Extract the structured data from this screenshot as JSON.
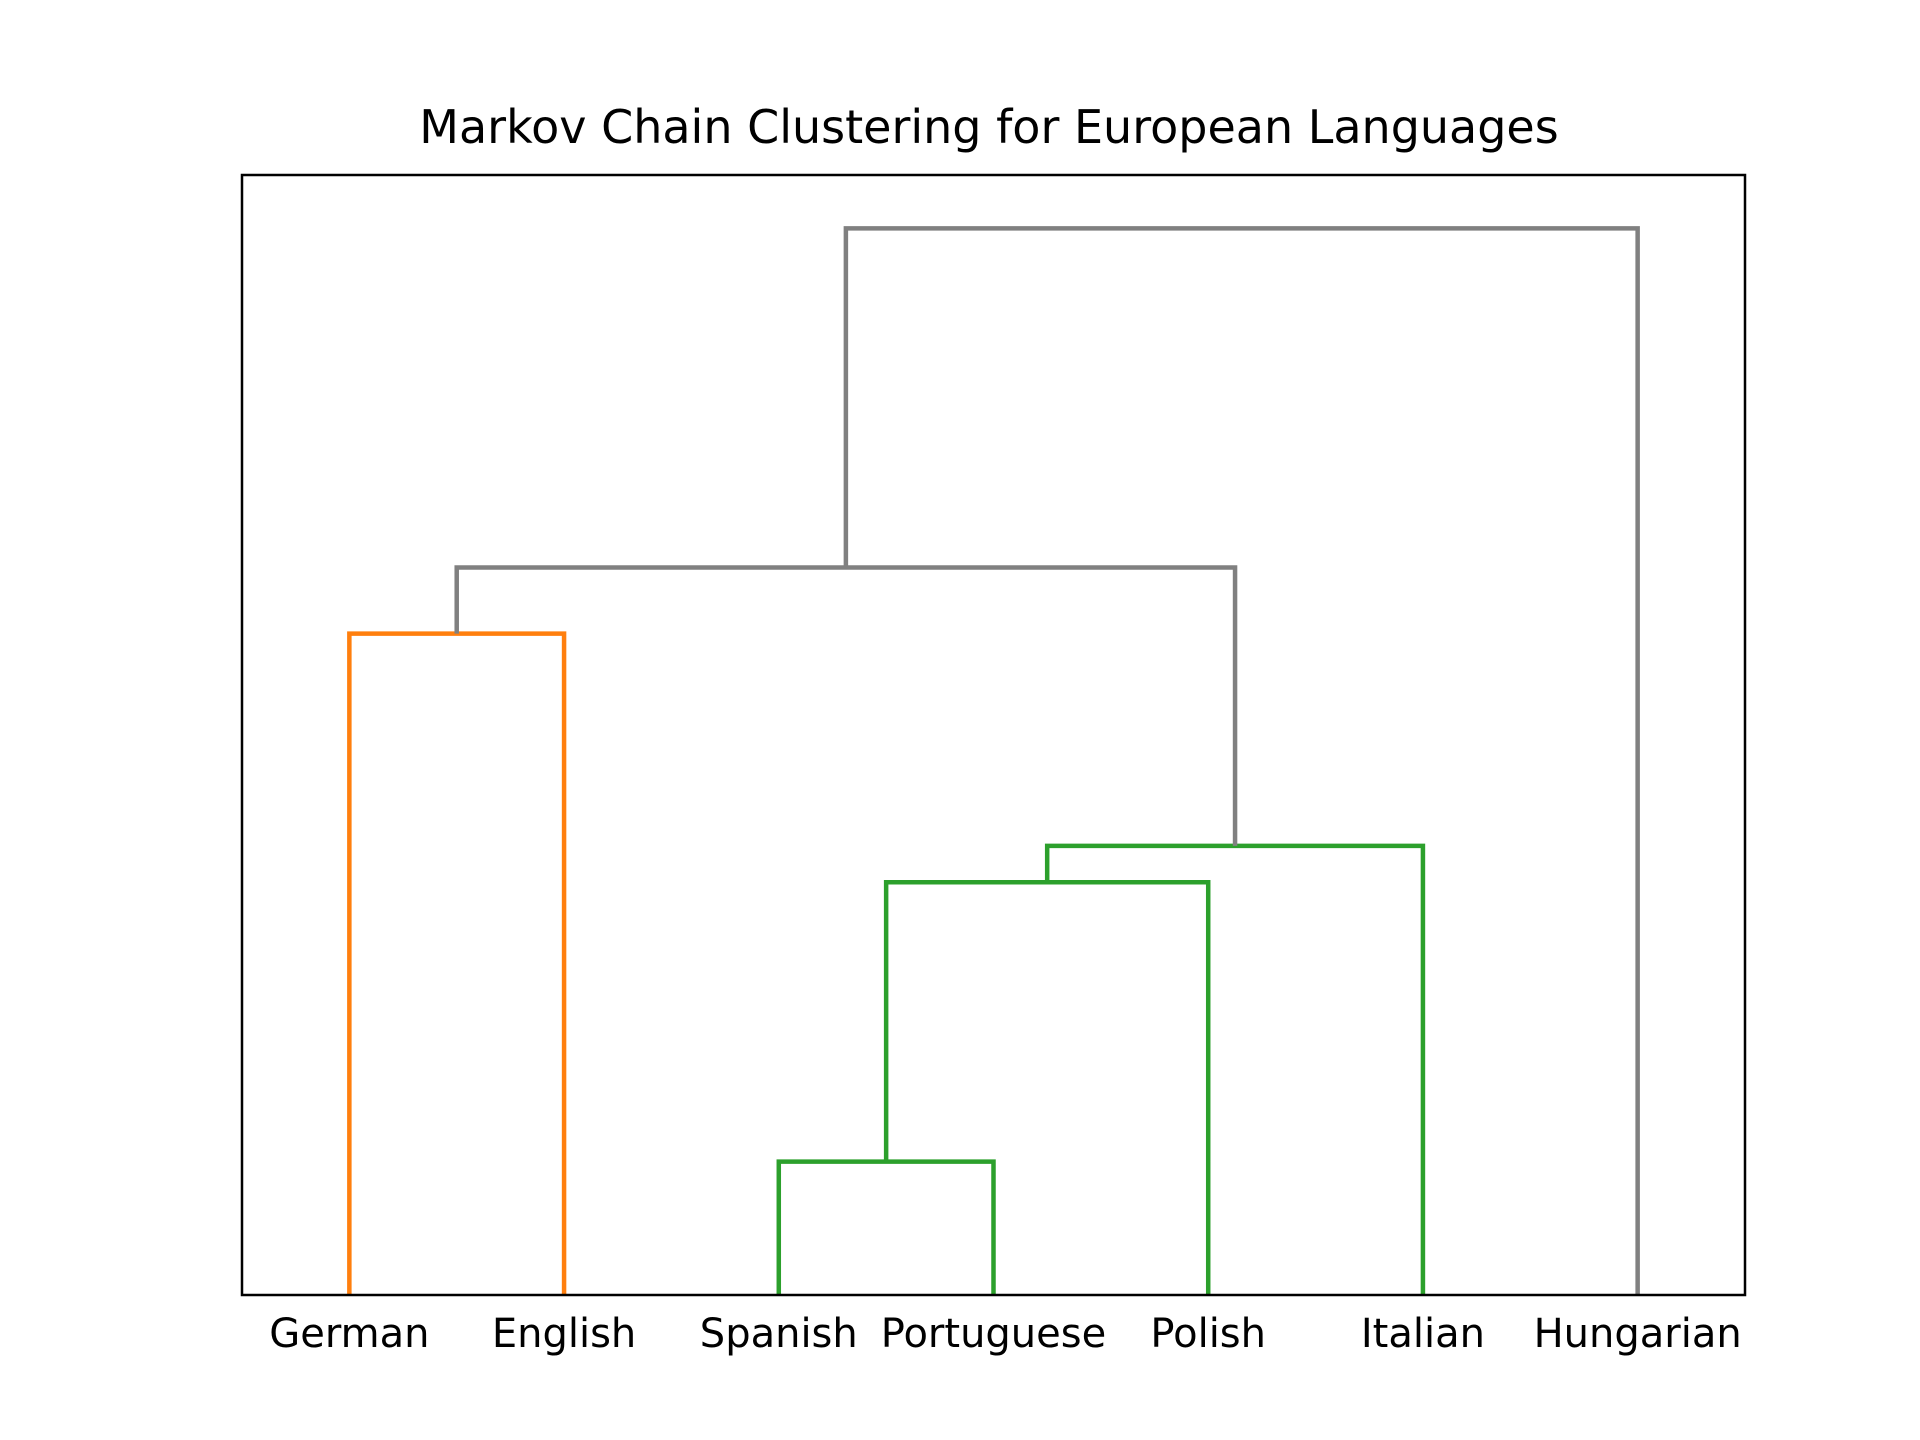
{
  "chart_data": {
    "type": "dendrogram",
    "title": "Markov Chain Clustering for European Languages",
    "xlabel": "",
    "ylabel": "",
    "leaves": [
      "German",
      "English",
      "Spanish",
      "Portuguese",
      "Polish",
      "Italian",
      "Hungarian"
    ],
    "ylim": [
      0,
      1.05
    ],
    "grid": false,
    "merges": [
      {
        "left": "Spanish",
        "right": "Portuguese",
        "height": 0.125,
        "color": "#2ca02c"
      },
      {
        "left": "Spanish+Portuguese",
        "right": "Polish",
        "height": 0.387,
        "color": "#2ca02c"
      },
      {
        "left": "Spanish+Portuguese+Polish",
        "right": "Italian",
        "height": 0.421,
        "color": "#2ca02c"
      },
      {
        "left": "German",
        "right": "English",
        "height": 0.62,
        "color": "#ff7f0e"
      },
      {
        "left": "German+English",
        "right": "Spanish+Portuguese+Polish+Italian",
        "height": 0.682,
        "color": "#808080"
      },
      {
        "left": "German+English+Spanish+Portuguese+Polish+Italian",
        "right": "Hungarian",
        "height": 1.0,
        "color": "#808080"
      }
    ]
  }
}
